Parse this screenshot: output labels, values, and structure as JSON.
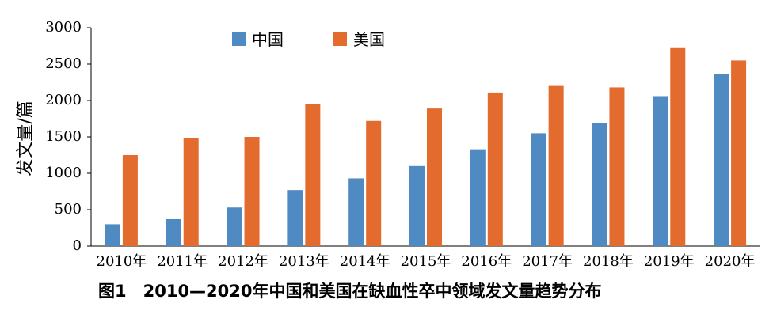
{
  "caption": "图1　2010—2020年中国和美国在缺血性卒中领域发文量趋势分布",
  "chart_data": {
    "type": "bar",
    "categories": [
      "2010年",
      "2011年",
      "2012年",
      "2013年",
      "2014年",
      "2015年",
      "2016年",
      "2017年",
      "2018年",
      "2019年",
      "2020年"
    ],
    "series": [
      {
        "name": "中国",
        "color": "#4f8ac2",
        "values": [
          300,
          370,
          530,
          770,
          930,
          1100,
          1330,
          1550,
          1690,
          2060,
          2360
        ]
      },
      {
        "name": "美国",
        "color": "#e46b2e",
        "values": [
          1250,
          1480,
          1500,
          1950,
          1720,
          1890,
          2110,
          2200,
          2180,
          2720,
          2550
        ]
      }
    ],
    "title": "",
    "xlabel": "",
    "ylabel": "发文量/篇",
    "ylim": [
      0,
      3000
    ],
    "yticks": [
      0,
      500,
      1000,
      1500,
      2000,
      2500,
      3000
    ],
    "grid": false,
    "legend_position": "top-left"
  }
}
